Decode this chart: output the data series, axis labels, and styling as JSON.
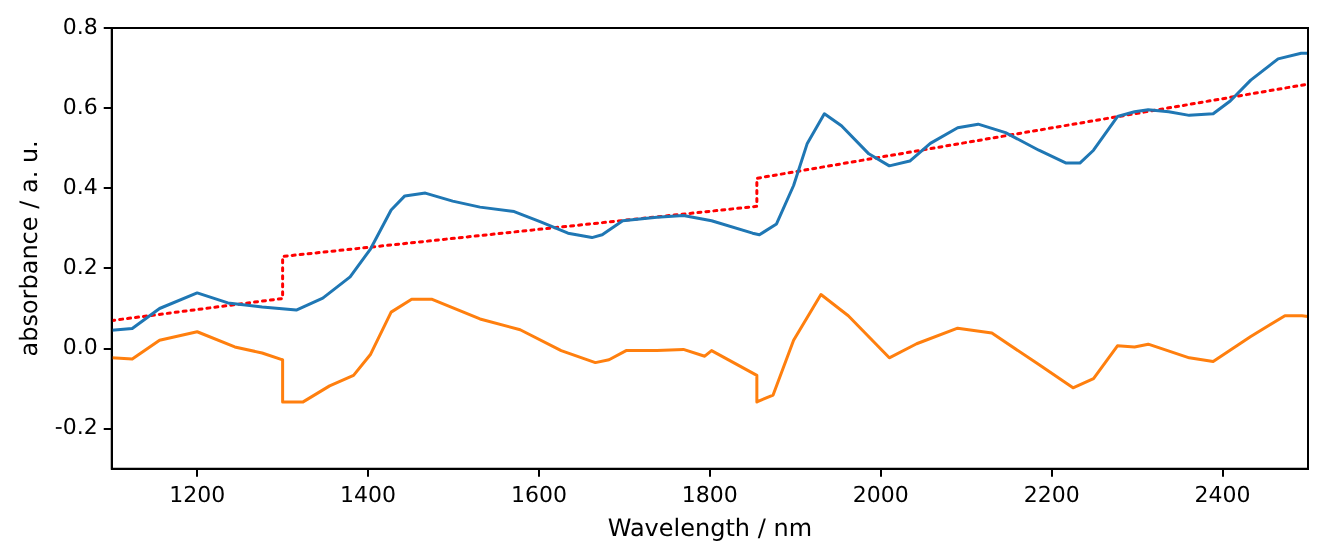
{
  "chart_data": {
    "type": "line",
    "xlabel": "Wavelength / nm",
    "ylabel": "absorbance / a. u.",
    "xlim": [
      1100,
      2500
    ],
    "xticks": [
      1200,
      1400,
      1600,
      1800,
      2000,
      2200,
      2400
    ],
    "ylim": [
      -0.3,
      0.8
    ],
    "yticks": [
      -0.2,
      {
        "value": 0,
        "label": "0.0"
      },
      0.2,
      0.4,
      0.6,
      0.8
    ],
    "grid": false,
    "legend": false,
    "marker": "none",
    "series": [
      {
        "color": "#1f77b4",
        "line_style": "solid",
        "x": [
          1100,
          1124,
          1156,
          1200,
          1236,
          1276,
          1316,
          1347,
          1379,
          1403,
          1427,
          1443,
          1467,
          1499,
          1531,
          1571,
          1602,
          1634,
          1662,
          1674,
          1698,
          1738,
          1769,
          1802,
          1850,
          1858,
          1878,
          1898,
          1914,
          1934,
          1954,
          1986,
          2010,
          2034,
          2058,
          2090,
          2114,
          2146,
          2185,
          2217,
          2233,
          2249,
          2277,
          2297,
          2313,
          2337,
          2361,
          2389,
          2409,
          2433,
          2465,
          2492,
          2500
        ],
        "values": [
          0.046,
          0.05,
          0.1,
          0.139,
          0.114,
          0.104,
          0.096,
          0.126,
          0.179,
          0.249,
          0.346,
          0.381,
          0.388,
          0.368,
          0.353,
          0.342,
          0.316,
          0.288,
          0.277,
          0.284,
          0.319,
          0.328,
          0.332,
          0.319,
          0.288,
          0.284,
          0.311,
          0.407,
          0.512,
          0.586,
          0.556,
          0.486,
          0.456,
          0.468,
          0.512,
          0.551,
          0.56,
          0.539,
          0.495,
          0.463,
          0.463,
          0.495,
          0.579,
          0.591,
          0.596,
          0.591,
          0.582,
          0.586,
          0.618,
          0.67,
          0.723,
          0.737,
          0.737
        ]
      },
      {
        "color": "#ff7f0e",
        "line_style": "solid",
        "x": [
          1100,
          1124,
          1156,
          1200,
          1244,
          1276,
          1300,
          1300,
          1324,
          1355,
          1383,
          1403,
          1427,
          1451,
          1475,
          1531,
          1578,
          1626,
          1666,
          1682,
          1702,
          1738,
          1769,
          1794,
          1802,
          1855,
          1855,
          1874,
          1898,
          1930,
          1962,
          2010,
          2042,
          2090,
          2130,
          2185,
          2225,
          2249,
          2277,
          2297,
          2313,
          2361,
          2389,
          2433,
          2473,
          2493,
          2500
        ],
        "values": [
          -0.023,
          -0.026,
          0.021,
          0.042,
          0.004,
          -0.011,
          -0.028,
          -0.133,
          -0.133,
          -0.093,
          -0.067,
          -0.014,
          0.091,
          0.123,
          0.123,
          0.074,
          0.047,
          -0.005,
          -0.035,
          -0.028,
          -0.005,
          -0.005,
          -0.002,
          -0.019,
          -0.005,
          -0.067,
          -0.133,
          -0.116,
          0.021,
          0.135,
          0.082,
          -0.023,
          0.012,
          0.051,
          0.039,
          -0.04,
          -0.098,
          -0.075,
          0.007,
          0.004,
          0.011,
          -0.023,
          -0.032,
          0.03,
          0.082,
          0.082,
          0.08
        ]
      },
      {
        "color": "#ff0000",
        "line_style": "dotted",
        "x": [
          1100,
          1300,
          1300,
          1855,
          1855,
          2500
        ],
        "values": [
          0.07,
          0.125,
          0.23,
          0.355,
          0.425,
          0.66
        ]
      }
    ]
  }
}
